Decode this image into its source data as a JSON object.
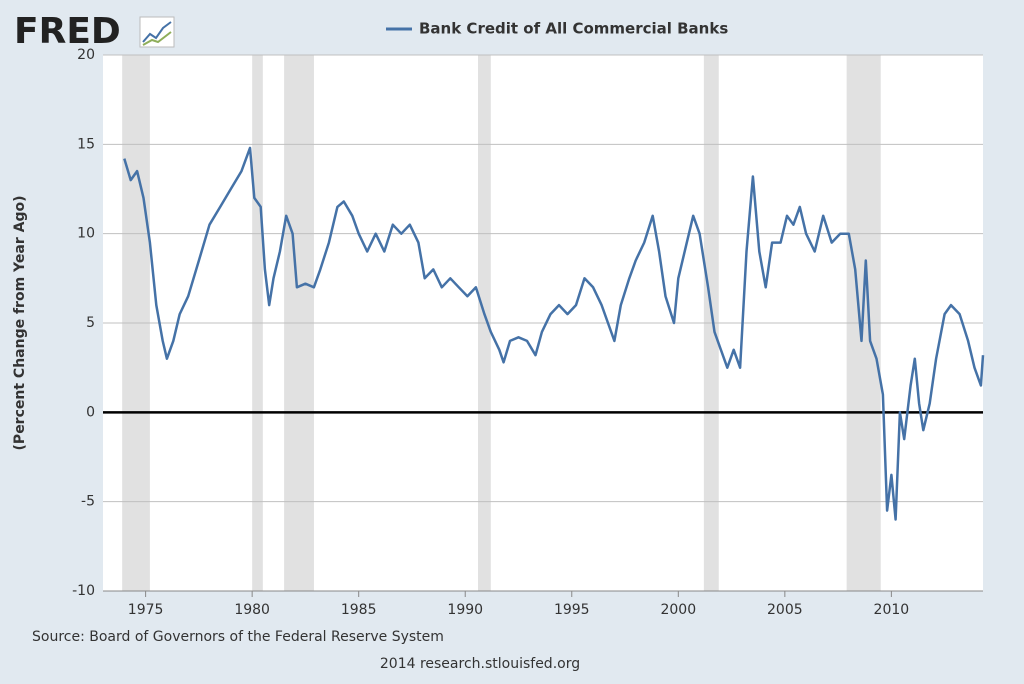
{
  "logo": "FRED",
  "chart_data": {
    "type": "line",
    "series": [
      {
        "name": "Bank Credit of All Commercial Banks",
        "color": "#4572a7"
      }
    ],
    "y_label": "(Percent Change from Year Ago)",
    "source": "Source: Board of Governors of the Federal Reserve System",
    "footer": "2014 research.stlouisfed.org",
    "x": [
      1974.0,
      1974.3,
      1974.6,
      1974.9,
      1975.2,
      1975.5,
      1975.8,
      1976.0,
      1976.3,
      1976.6,
      1977.0,
      1977.5,
      1978.0,
      1978.5,
      1979.0,
      1979.5,
      1979.9,
      1980.1,
      1980.4,
      1980.6,
      1980.8,
      1981.0,
      1981.3,
      1981.6,
      1981.9,
      1982.1,
      1982.5,
      1982.9,
      1983.2,
      1983.6,
      1984.0,
      1984.3,
      1984.7,
      1985.0,
      1985.4,
      1985.8,
      1986.2,
      1986.6,
      1987.0,
      1987.4,
      1987.8,
      1988.1,
      1988.5,
      1988.9,
      1989.3,
      1989.7,
      1990.1,
      1990.5,
      1990.9,
      1991.2,
      1991.6,
      1991.8,
      1992.1,
      1992.5,
      1992.9,
      1993.3,
      1993.6,
      1994.0,
      1994.4,
      1994.8,
      1995.2,
      1995.6,
      1996.0,
      1996.4,
      1996.7,
      1997.0,
      1997.3,
      1997.7,
      1998.0,
      1998.4,
      1998.8,
      1999.1,
      1999.4,
      1999.8,
      2000.0,
      2000.4,
      2000.7,
      2001.0,
      2001.4,
      2001.7,
      2002.0,
      2002.3,
      2002.6,
      2002.9,
      2003.2,
      2003.5,
      2003.8,
      2004.1,
      2004.4,
      2004.8,
      2005.1,
      2005.4,
      2005.7,
      2006.0,
      2006.4,
      2006.8,
      2007.2,
      2007.6,
      2008.0,
      2008.3,
      2008.6,
      2008.8,
      2009.0,
      2009.3,
      2009.6,
      2009.8,
      2010.0,
      2010.2,
      2010.4,
      2010.6,
      2010.9,
      2011.1,
      2011.3,
      2011.5,
      2011.8,
      2012.1,
      2012.5,
      2012.8,
      2013.2,
      2013.6,
      2013.9,
      2014.2,
      2014.3
    ],
    "values": [
      14.2,
      13.0,
      13.5,
      12.0,
      9.5,
      6.0,
      4.0,
      3.0,
      4.0,
      5.5,
      6.5,
      8.5,
      10.5,
      11.5,
      12.5,
      13.5,
      14.8,
      12.0,
      11.5,
      8.0,
      6.0,
      7.5,
      9.0,
      11.0,
      10.0,
      7.0,
      7.2,
      7.0,
      8.0,
      9.5,
      11.5,
      11.8,
      11.0,
      10.0,
      9.0,
      10.0,
      9.0,
      10.5,
      10.0,
      10.5,
      9.5,
      7.5,
      8.0,
      7.0,
      7.5,
      7.0,
      6.5,
      7.0,
      5.5,
      4.5,
      3.5,
      2.8,
      4.0,
      4.2,
      4.0,
      3.2,
      4.5,
      5.5,
      6.0,
      5.5,
      6.0,
      7.5,
      7.0,
      6.0,
      5.0,
      4.0,
      6.0,
      7.5,
      8.5,
      9.5,
      11.0,
      9.0,
      6.5,
      5.0,
      7.5,
      9.5,
      11.0,
      10.0,
      7.0,
      4.5,
      3.5,
      2.5,
      3.5,
      2.5,
      9.0,
      13.2,
      9.0,
      7.0,
      9.5,
      9.5,
      11.0,
      10.5,
      11.5,
      10.0,
      9.0,
      11.0,
      9.5,
      10.0,
      10.0,
      8.0,
      4.0,
      8.5,
      4.0,
      3.0,
      1.0,
      -5.5,
      -3.5,
      -6.0,
      0.0,
      -1.5,
      1.5,
      3.0,
      0.5,
      -1.0,
      0.5,
      3.0,
      5.5,
      6.0,
      5.5,
      4.0,
      2.5,
      1.5,
      3.2
    ],
    "recessions": [
      [
        1973.9,
        1975.2
      ],
      [
        1980.0,
        1980.5
      ],
      [
        1981.5,
        1982.9
      ],
      [
        1990.6,
        1991.2
      ],
      [
        2001.2,
        2001.9
      ],
      [
        2007.9,
        2009.5
      ]
    ],
    "baseline": 0,
    "xlim": [
      1973.0,
      2014.3
    ],
    "ylim": [
      -10,
      20
    ],
    "xticks": [
      1975,
      1980,
      1985,
      1990,
      1995,
      2000,
      2005,
      2010
    ],
    "yticks": [
      -10,
      -5,
      0,
      5,
      10,
      15,
      20
    ],
    "grid": true
  }
}
